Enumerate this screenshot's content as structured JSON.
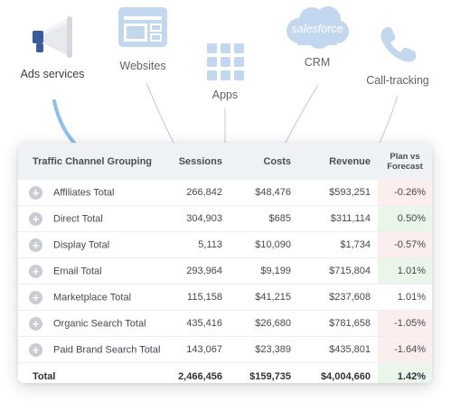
{
  "sources": [
    {
      "name": "ads-services",
      "label": "Ads services",
      "icon": "megaphone-icon"
    },
    {
      "name": "websites",
      "label": "Websites",
      "icon": "browser-window-icon"
    },
    {
      "name": "apps",
      "label": "Apps",
      "icon": "apps-grid-icon"
    },
    {
      "name": "crm",
      "label": "CRM",
      "icon": "salesforce-cloud-icon",
      "logo_text": "salesforce"
    },
    {
      "name": "call-tracking",
      "label": "Call-tracking",
      "icon": "phone-icon"
    }
  ],
  "table": {
    "headers": {
      "grouping": "Traffic Channel Grouping",
      "sessions": "Sessions",
      "costs": "Costs",
      "revenue": "Revenue",
      "plan_line1": "Plan vs",
      "plan_line2": "Forecast"
    },
    "rows": [
      {
        "label": "Affiliates Total",
        "sessions": "266,842",
        "costs": "$48,476",
        "revenue": "$593,251",
        "plan": "-0.26%",
        "status": "negative"
      },
      {
        "label": "Direct Total",
        "sessions": "304,903",
        "costs": "$685",
        "revenue": "$311,114",
        "plan": "0.50%",
        "status": "positive"
      },
      {
        "label": "Display Total",
        "sessions": "5,113",
        "costs": "$10,090",
        "revenue": "$1,734",
        "plan": "-0.57%",
        "status": "negative"
      },
      {
        "label": "Email Total",
        "sessions": "293,964",
        "costs": "$9,199",
        "revenue": "$715,804",
        "plan": "1.01%",
        "status": "positive"
      },
      {
        "label": "Marketplace Total",
        "sessions": "115,158",
        "costs": "$41,215",
        "revenue": "$237,608",
        "plan": "1.01%",
        "status": "neutral"
      },
      {
        "label": "Organic Search Total",
        "sessions": "435,416",
        "costs": "$26,680",
        "revenue": "$781,658",
        "plan": "-1.05%",
        "status": "negative"
      },
      {
        "label": "Paid Brand Search Total",
        "sessions": "143,067",
        "costs": "$23,389",
        "revenue": "$435,801",
        "plan": "-1.64%",
        "status": "negative"
      }
    ],
    "total": {
      "label": "Total",
      "sessions": "2,466,456",
      "costs": "$159,735",
      "revenue": "$4,004,660",
      "plan": "1.42%",
      "status": "positive"
    }
  },
  "colors": {
    "accent_line": "#8fc0ea",
    "icon_blue": "#c3d7ee",
    "negative_bg": "#fdeeee",
    "positive_bg": "#eaf6ea"
  }
}
